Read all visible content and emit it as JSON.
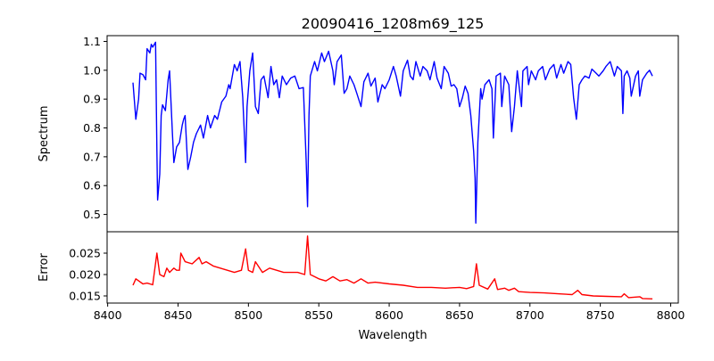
{
  "chart_data": [
    {
      "type": "line",
      "panel": "top",
      "title": "20090416_1208m69_125",
      "xlabel": "",
      "ylabel": "Spectrum",
      "xlim": [
        8399.6,
        8805.4
      ],
      "ylim": [
        0.44,
        1.12
      ],
      "yticks": [
        0.5,
        0.6,
        0.7,
        0.8,
        0.9,
        1.0,
        1.1
      ],
      "ytick_labels": [
        "0.5",
        "0.6",
        "0.7",
        "0.8",
        "0.9",
        "1.0",
        "1.1"
      ],
      "grid": false,
      "series": [
        {
          "name": "Spectrum",
          "color": "#0000ff",
          "points": [
            [
              8418,
              0.957
            ],
            [
              8420,
              0.83
            ],
            [
              8422,
              0.9
            ],
            [
              8423,
              0.99
            ],
            [
              8425,
              0.985
            ],
            [
              8427,
              0.967
            ],
            [
              8428,
              1.075
            ],
            [
              8430,
              1.06
            ],
            [
              8431,
              1.09
            ],
            [
              8432,
              1.08
            ],
            [
              8434,
              1.097
            ],
            [
              8435,
              0.72
            ],
            [
              8435.5,
              0.55
            ],
            [
              8437,
              0.64
            ],
            [
              8438,
              0.843
            ],
            [
              8439,
              0.88
            ],
            [
              8441,
              0.86
            ],
            [
              8443,
              0.967
            ],
            [
              8444,
              0.998
            ],
            [
              8446,
              0.78
            ],
            [
              8447,
              0.68
            ],
            [
              8449,
              0.734
            ],
            [
              8451,
              0.75
            ],
            [
              8453,
              0.81
            ],
            [
              8454,
              0.83
            ],
            [
              8455,
              0.843
            ],
            [
              8457,
              0.656
            ],
            [
              8459,
              0.7
            ],
            [
              8461,
              0.75
            ],
            [
              8463,
              0.78
            ],
            [
              8466,
              0.81
            ],
            [
              8468,
              0.765
            ],
            [
              8471,
              0.843
            ],
            [
              8473,
              0.8
            ],
            [
              8476,
              0.843
            ],
            [
              8478,
              0.83
            ],
            [
              8481,
              0.89
            ],
            [
              8484,
              0.91
            ],
            [
              8486,
              0.95
            ],
            [
              8487,
              0.936
            ],
            [
              8490,
              1.02
            ],
            [
              8492,
              0.998
            ],
            [
              8494,
              1.03
            ],
            [
              8496,
              0.905
            ],
            [
              8498,
              0.68
            ],
            [
              8499,
              0.874
            ],
            [
              8501,
              0.998
            ],
            [
              8503,
              1.06
            ],
            [
              8505,
              0.874
            ],
            [
              8507,
              0.85
            ],
            [
              8509,
              0.967
            ],
            [
              8511,
              0.98
            ],
            [
              8514,
              0.905
            ],
            [
              8516,
              1.013
            ],
            [
              8518,
              0.95
            ],
            [
              8520,
              0.967
            ],
            [
              8522,
              0.905
            ],
            [
              8524,
              0.98
            ],
            [
              8527,
              0.95
            ],
            [
              8530,
              0.973
            ],
            [
              8533,
              0.98
            ],
            [
              8536,
              0.936
            ],
            [
              8539,
              0.94
            ],
            [
              8541,
              0.69
            ],
            [
              8542,
              0.527
            ],
            [
              8543,
              0.843
            ],
            [
              8544,
              0.98
            ],
            [
              8547,
              1.03
            ],
            [
              8549,
              0.998
            ],
            [
              8552,
              1.06
            ],
            [
              8554,
              1.03
            ],
            [
              8557,
              1.066
            ],
            [
              8560,
              0.998
            ],
            [
              8561,
              0.95
            ],
            [
              8563,
              1.03
            ],
            [
              8566,
              1.053
            ],
            [
              8568,
              0.92
            ],
            [
              8570,
              0.936
            ],
            [
              8572,
              0.98
            ],
            [
              8575,
              0.95
            ],
            [
              8577,
              0.92
            ],
            [
              8580,
              0.874
            ],
            [
              8582,
              0.96
            ],
            [
              8585,
              0.99
            ],
            [
              8587,
              0.945
            ],
            [
              8590,
              0.973
            ],
            [
              8592,
              0.89
            ],
            [
              8595,
              0.95
            ],
            [
              8597,
              0.936
            ],
            [
              8600,
              0.967
            ],
            [
              8603,
              1.013
            ],
            [
              8605,
              0.98
            ],
            [
              8608,
              0.91
            ],
            [
              8610,
              0.998
            ],
            [
              8613,
              1.035
            ],
            [
              8615,
              0.98
            ],
            [
              8617,
              0.967
            ],
            [
              8619,
              1.03
            ],
            [
              8622,
              0.98
            ],
            [
              8624,
              1.013
            ],
            [
              8627,
              0.998
            ],
            [
              8629,
              0.967
            ],
            [
              8632,
              1.03
            ],
            [
              8634,
              0.973
            ],
            [
              8637,
              0.936
            ],
            [
              8639,
              1.013
            ],
            [
              8642,
              0.99
            ],
            [
              8644,
              0.945
            ],
            [
              8646,
              0.95
            ],
            [
              8648,
              0.936
            ],
            [
              8650,
              0.874
            ],
            [
              8652,
              0.905
            ],
            [
              8654,
              0.945
            ],
            [
              8656,
              0.92
            ],
            [
              8658,
              0.843
            ],
            [
              8660,
              0.72
            ],
            [
              8661,
              0.626
            ],
            [
              8661.5,
              0.47
            ],
            [
              8663,
              0.75
            ],
            [
              8665,
              0.936
            ],
            [
              8666,
              0.9
            ],
            [
              8668,
              0.95
            ],
            [
              8671,
              0.967
            ],
            [
              8673,
              0.936
            ],
            [
              8674,
              0.765
            ],
            [
              8676,
              0.98
            ],
            [
              8679,
              0.99
            ],
            [
              8680,
              0.874
            ],
            [
              8682,
              0.98
            ],
            [
              8685,
              0.95
            ],
            [
              8687,
              0.787
            ],
            [
              8689,
              0.874
            ],
            [
              8691,
              0.998
            ],
            [
              8694,
              0.874
            ],
            [
              8695,
              0.998
            ],
            [
              8698,
              1.013
            ],
            [
              8699,
              0.95
            ],
            [
              8701,
              0.998
            ],
            [
              8704,
              0.967
            ],
            [
              8706,
              0.998
            ],
            [
              8709,
              1.013
            ],
            [
              8711,
              0.967
            ],
            [
              8714,
              1.004
            ],
            [
              8717,
              1.02
            ],
            [
              8719,
              0.973
            ],
            [
              8722,
              1.02
            ],
            [
              8724,
              0.99
            ],
            [
              8727,
              1.03
            ],
            [
              8729,
              1.02
            ],
            [
              8731,
              0.905
            ],
            [
              8733,
              0.83
            ],
            [
              8735,
              0.95
            ],
            [
              8737,
              0.967
            ],
            [
              8739,
              0.98
            ],
            [
              8742,
              0.973
            ],
            [
              8744,
              1.004
            ],
            [
              8747,
              0.99
            ],
            [
              8749,
              0.98
            ],
            [
              8752,
              0.998
            ],
            [
              8754,
              1.013
            ],
            [
              8757,
              1.03
            ],
            [
              8760,
              0.98
            ],
            [
              8762,
              1.013
            ],
            [
              8765,
              0.998
            ],
            [
              8766,
              0.85
            ],
            [
              8767,
              0.98
            ],
            [
              8769,
              0.998
            ],
            [
              8771,
              0.973
            ],
            [
              8772,
              0.91
            ],
            [
              8775,
              0.98
            ],
            [
              8777,
              0.998
            ],
            [
              8778,
              0.91
            ],
            [
              8780,
              0.967
            ],
            [
              8783,
              0.99
            ],
            [
              8785,
              1.0
            ],
            [
              8787,
              0.98
            ]
          ]
        }
      ]
    },
    {
      "type": "line",
      "panel": "bottom",
      "xlabel": "Wavelength",
      "ylabel": "Error",
      "xlim": [
        8399.6,
        8805.4
      ],
      "ylim": [
        0.01333,
        0.03
      ],
      "xticks": [
        8400,
        8450,
        8500,
        8550,
        8600,
        8650,
        8700,
        8750,
        8800
      ],
      "xtick_labels": [
        "8400",
        "8450",
        "8500",
        "8550",
        "8600",
        "8650",
        "8700",
        "8750",
        "8800"
      ],
      "yticks": [
        0.015,
        0.02,
        0.025
      ],
      "ytick_labels": [
        "0.015",
        "0.020",
        "0.025"
      ],
      "grid": false,
      "series": [
        {
          "name": "Error",
          "color": "#ff0000",
          "points": [
            [
              8418,
              0.0175
            ],
            [
              8420,
              0.019
            ],
            [
              8425,
              0.0178
            ],
            [
              8428,
              0.018
            ],
            [
              8432,
              0.0176
            ],
            [
              8435,
              0.025
            ],
            [
              8437,
              0.02
            ],
            [
              8440,
              0.0195
            ],
            [
              8442,
              0.0215
            ],
            [
              8444,
              0.0205
            ],
            [
              8447,
              0.0215
            ],
            [
              8449,
              0.021
            ],
            [
              8451,
              0.021
            ],
            [
              8452,
              0.025
            ],
            [
              8455,
              0.023
            ],
            [
              8460,
              0.0225
            ],
            [
              8465,
              0.024
            ],
            [
              8467,
              0.0225
            ],
            [
              8470,
              0.023
            ],
            [
              8475,
              0.022
            ],
            [
              8480,
              0.0215
            ],
            [
              8485,
              0.021
            ],
            [
              8490,
              0.0205
            ],
            [
              8495,
              0.021
            ],
            [
              8498,
              0.026
            ],
            [
              8500,
              0.021
            ],
            [
              8503,
              0.0205
            ],
            [
              8505,
              0.023
            ],
            [
              8510,
              0.0205
            ],
            [
              8515,
              0.0215
            ],
            [
              8520,
              0.021
            ],
            [
              8525,
              0.0205
            ],
            [
              8530,
              0.0205
            ],
            [
              8535,
              0.0205
            ],
            [
              8540,
              0.02
            ],
            [
              8542,
              0.029
            ],
            [
              8544,
              0.02
            ],
            [
              8550,
              0.019
            ],
            [
              8555,
              0.0185
            ],
            [
              8560,
              0.0195
            ],
            [
              8565,
              0.0185
            ],
            [
              8570,
              0.0188
            ],
            [
              8575,
              0.018
            ],
            [
              8580,
              0.019
            ],
            [
              8585,
              0.018
            ],
            [
              8590,
              0.0182
            ],
            [
              8600,
              0.0178
            ],
            [
              8610,
              0.0175
            ],
            [
              8620,
              0.017
            ],
            [
              8630,
              0.017
            ],
            [
              8640,
              0.0168
            ],
            [
              8650,
              0.017
            ],
            [
              8655,
              0.0167
            ],
            [
              8660,
              0.0172
            ],
            [
              8662,
              0.0225
            ],
            [
              8664,
              0.0175
            ],
            [
              8670,
              0.0166
            ],
            [
              8675,
              0.019
            ],
            [
              8677,
              0.0165
            ],
            [
              8682,
              0.0168
            ],
            [
              8685,
              0.0163
            ],
            [
              8689,
              0.0168
            ],
            [
              8692,
              0.016
            ],
            [
              8700,
              0.0158
            ],
            [
              8710,
              0.0157
            ],
            [
              8720,
              0.0155
            ],
            [
              8730,
              0.0153
            ],
            [
              8734,
              0.0163
            ],
            [
              8737,
              0.0153
            ],
            [
              8745,
              0.015
            ],
            [
              8755,
              0.0149
            ],
            [
              8765,
              0.0148
            ],
            [
              8767,
              0.0155
            ],
            [
              8770,
              0.0146
            ],
            [
              8778,
              0.0148
            ],
            [
              8780,
              0.0144
            ],
            [
              8787,
              0.0143
            ]
          ]
        }
      ]
    }
  ]
}
